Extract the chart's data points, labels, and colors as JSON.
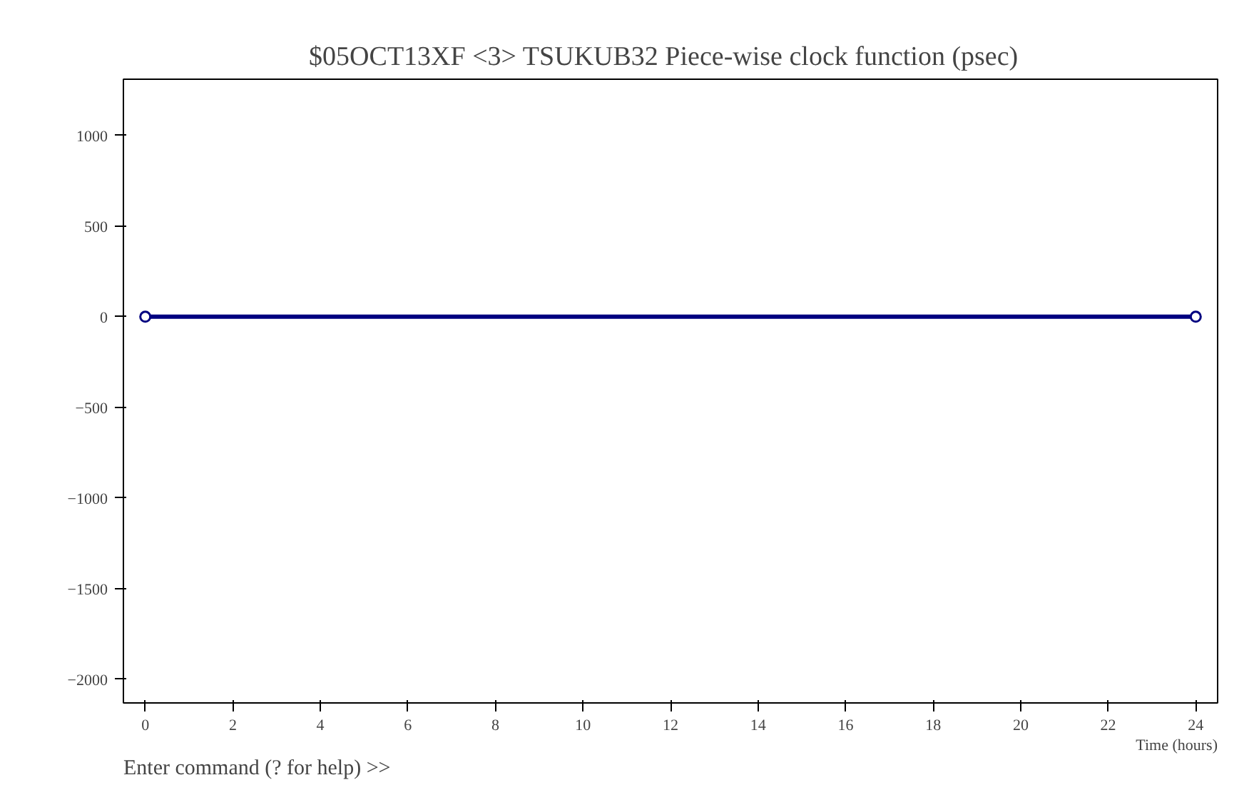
{
  "chart_data": {
    "type": "line",
    "title": "$05OCT13XF <3>  TSUKUB32  Piece-wise clock function (psec)",
    "xlabel": "Time (hours)",
    "annotations": [
      "Enter command (? for help) >>"
    ],
    "x": [
      0,
      24
    ],
    "series": [
      {
        "color": "#000080",
        "values": [
          0,
          0
        ]
      }
    ],
    "marker": "circle",
    "line_style": "solid",
    "grid": false,
    "xlim": [
      -0.5,
      24.5
    ],
    "ylim": [
      -2130,
      1310
    ],
    "xticks": [
      0,
      2,
      4,
      6,
      8,
      10,
      12,
      14,
      16,
      18,
      20,
      22,
      24
    ],
    "yticks": [
      -2000,
      -1500,
      -1000,
      -500,
      0,
      500,
      1000
    ]
  }
}
